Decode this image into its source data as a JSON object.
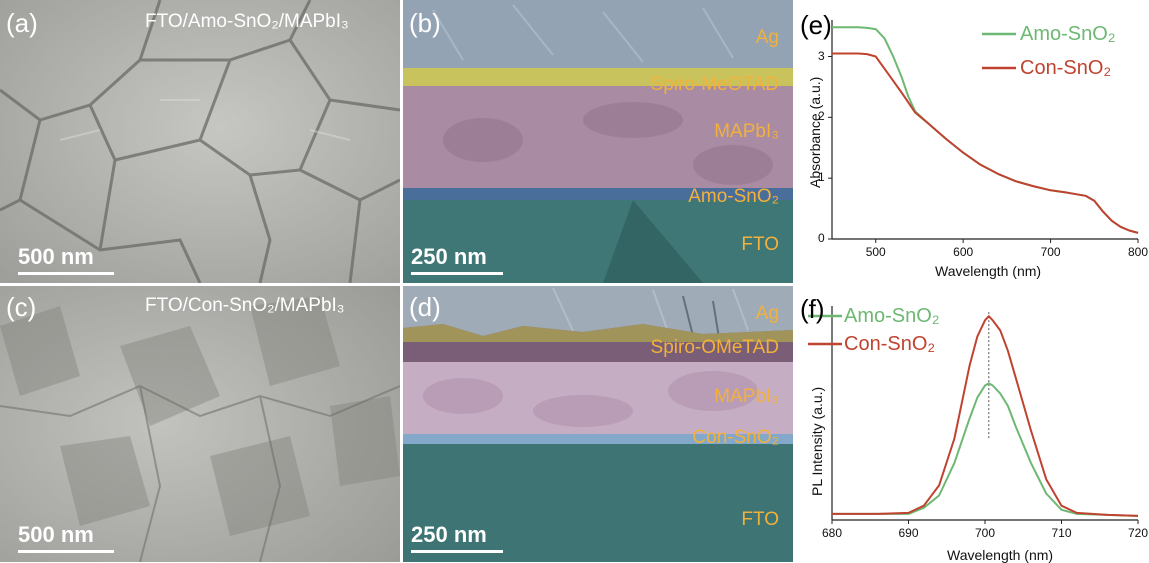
{
  "panels": {
    "a": {
      "label": "(a)",
      "sample": "FTO/Amo-SnO₂/MAPbI₃",
      "scale": "500 nm"
    },
    "b": {
      "label": "(b)",
      "scale": "250 nm",
      "layers": {
        "ag": "Ag",
        "htl": "Spiro-MeOTAD",
        "perov": "MAPbI₃",
        "etl": "Amo-SnO₂",
        "fto": "FTO"
      }
    },
    "c": {
      "label": "(c)",
      "sample": "FTO/Con-SnO₂/MAPbI₃",
      "scale": "500 nm"
    },
    "d": {
      "label": "(d)",
      "scale": "250 nm",
      "layers": {
        "ag": "Ag",
        "htl": "Spiro-OMeTAD",
        "perov": "MAPbI₃",
        "etl": "Con-SnO₂",
        "fto": "FTO"
      }
    }
  },
  "colors": {
    "amo": "#6db872",
    "con": "#bf4330",
    "layer_text": "#f2b13b"
  },
  "chart_data": [
    {
      "panel_label": "(e)",
      "type": "line",
      "xlabel": "Wavelength (nm)",
      "ylabel": "Absorbance (a.u.)",
      "xlim": [
        450,
        800
      ],
      "ylim": [
        0,
        3.6
      ],
      "xticks": [
        500,
        600,
        700,
        800
      ],
      "yticks": [
        0,
        1,
        2,
        3
      ],
      "legend_position": "top-right",
      "series": [
        {
          "name": "Amo-SnO₂",
          "color": "#6db872",
          "x": [
            450,
            480,
            490,
            500,
            510,
            520,
            530,
            537,
            545,
            560,
            580,
            600,
            620,
            640,
            660,
            680,
            700,
            720,
            740,
            750,
            760,
            770,
            780,
            790,
            800
          ],
          "y": [
            3.48,
            3.48,
            3.47,
            3.45,
            3.3,
            3.0,
            2.65,
            2.35,
            2.1,
            1.9,
            1.65,
            1.42,
            1.22,
            1.07,
            0.95,
            0.87,
            0.8,
            0.76,
            0.71,
            0.63,
            0.45,
            0.3,
            0.2,
            0.14,
            0.1
          ]
        },
        {
          "name": "Con-SnO₂",
          "color": "#bf4330",
          "x": [
            450,
            480,
            490,
            500,
            510,
            520,
            530,
            537,
            545,
            560,
            580,
            600,
            620,
            640,
            660,
            680,
            700,
            720,
            740,
            750,
            760,
            770,
            780,
            790,
            800
          ],
          "y": [
            3.05,
            3.05,
            3.04,
            3.0,
            2.8,
            2.6,
            2.4,
            2.25,
            2.08,
            1.9,
            1.65,
            1.42,
            1.22,
            1.07,
            0.95,
            0.87,
            0.8,
            0.76,
            0.71,
            0.63,
            0.45,
            0.3,
            0.2,
            0.14,
            0.1
          ]
        }
      ]
    },
    {
      "panel_label": "(f)",
      "type": "line",
      "xlabel": "Wavelength (nm)",
      "ylabel": "PL Intensity (a.u.)",
      "xlim": [
        680,
        720
      ],
      "ylim": [
        0,
        1.05
      ],
      "xticks": [
        680,
        690,
        700,
        710,
        720
      ],
      "yticks": [],
      "peak_marker_x": 700.5,
      "legend_position": "top-left",
      "series": [
        {
          "name": "Amo-SnO₂",
          "color": "#6db872",
          "x": [
            680,
            686,
            690,
            692,
            694,
            696,
            698,
            699,
            700,
            700.5,
            701,
            702,
            703,
            704,
            706,
            708,
            710,
            712,
            716,
            720
          ],
          "y": [
            0.03,
            0.03,
            0.03,
            0.06,
            0.12,
            0.28,
            0.5,
            0.6,
            0.66,
            0.67,
            0.66,
            0.62,
            0.56,
            0.46,
            0.28,
            0.13,
            0.05,
            0.03,
            0.025,
            0.02
          ]
        },
        {
          "name": "Con-SnO₂",
          "color": "#bf4330",
          "x": [
            680,
            686,
            690,
            692,
            694,
            696,
            698,
            699,
            700,
            700.5,
            701,
            702,
            703,
            704,
            706,
            708,
            710,
            712,
            716,
            720
          ],
          "y": [
            0.03,
            0.03,
            0.035,
            0.07,
            0.17,
            0.4,
            0.76,
            0.9,
            0.98,
            1.0,
            0.98,
            0.93,
            0.83,
            0.7,
            0.44,
            0.2,
            0.07,
            0.035,
            0.025,
            0.02
          ]
        }
      ]
    }
  ]
}
